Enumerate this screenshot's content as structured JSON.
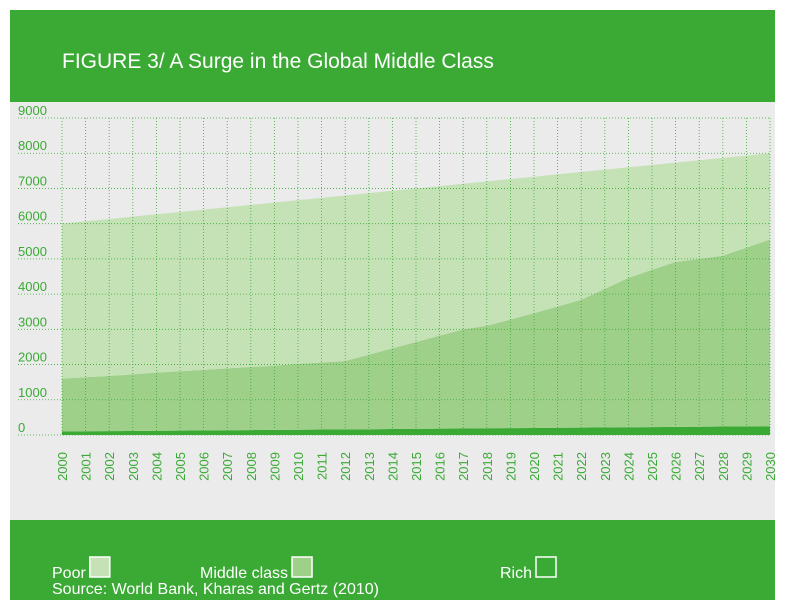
{
  "chart_data": {
    "type": "stacked_area",
    "title": "FIGURE 3/ A Surge in the Global Middle Class",
    "source": "Source: World Bank, Kharas and Gertz (2010)",
    "categories": [
      "2000",
      "2001",
      "2002",
      "2003",
      "2004",
      "2005",
      "2006",
      "2007",
      "2008",
      "2009",
      "2010",
      "2011",
      "2012",
      "2013",
      "2014",
      "2015",
      "2016",
      "2017",
      "2018",
      "2019",
      "2020",
      "2021",
      "2022",
      "2023",
      "2024",
      "2025",
      "2026",
      "2027",
      "2028",
      "2029",
      "2030"
    ],
    "series": [
      {
        "name": "Rich",
        "color": "#3aaa35",
        "values": [
          100,
          105,
          110,
          115,
          120,
          125,
          130,
          135,
          140,
          145,
          150,
          155,
          160,
          165,
          170,
          175,
          180,
          185,
          190,
          195,
          200,
          205,
          210,
          215,
          220,
          225,
          230,
          235,
          240,
          245,
          250
        ]
      },
      {
        "name": "Middle class",
        "color": "#9fd08a",
        "values": [
          1500,
          1535,
          1570,
          1605,
          1650,
          1685,
          1720,
          1755,
          1790,
          1825,
          1870,
          1905,
          1940,
          2115,
          2290,
          2465,
          2640,
          2815,
          2910,
          3085,
          3260,
          3445,
          3630,
          3935,
          4240,
          4465,
          4680,
          4765,
          4850,
          5075,
          5300
        ]
      },
      {
        "name": "Poor",
        "color": "#c5e2b6",
        "values": [
          4400,
          4427,
          4453,
          4480,
          4497,
          4523,
          4550,
          4577,
          4603,
          4630,
          4647,
          4673,
          4700,
          4587,
          4473,
          4360,
          4247,
          4133,
          4100,
          3987,
          3873,
          3750,
          3627,
          3383,
          3140,
          2977,
          2823,
          2800,
          2777,
          2613,
          2450
        ]
      }
    ],
    "ylim": [
      0,
      9000
    ],
    "yticks": [
      0,
      1000,
      2000,
      3000,
      4000,
      5000,
      6000,
      7000,
      8000,
      9000
    ],
    "grid": true
  }
}
